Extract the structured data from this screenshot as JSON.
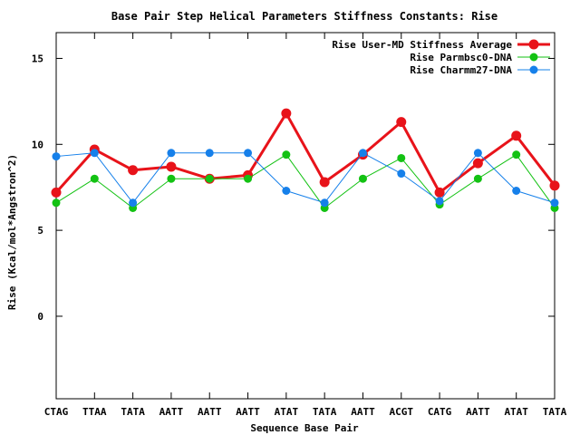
{
  "chart_data": {
    "type": "line",
    "title": "Base Pair Step Helical Parameters Stiffness Constants: Rise",
    "xlabel": "Sequence Base Pair",
    "ylabel": "Rise (Kcal/mol*Angstron^2)",
    "ylim": [
      -4.8,
      16.5
    ],
    "yticks": [
      0,
      5,
      10,
      15
    ],
    "grid": false,
    "legend_position": "top-right",
    "categories": [
      "CTAG",
      "TTAA",
      "TATA",
      "AATT",
      "AATT",
      "AATT",
      "ATAT",
      "TATA",
      "AATT",
      "ACGT",
      "CATG",
      "AATT",
      "ATAT",
      "TATA"
    ],
    "series": [
      {
        "name": "Rise User-MD Stiffness Average",
        "color": "#e8131a",
        "values": [
          7.2,
          9.7,
          8.5,
          8.7,
          8.0,
          8.2,
          11.8,
          7.8,
          9.4,
          11.3,
          7.2,
          8.9,
          10.5,
          7.6
        ]
      },
      {
        "name": "Rise Parmbsc0-DNA",
        "color": "#13c213",
        "values": [
          6.6,
          8.0,
          6.3,
          8.0,
          8.0,
          8.0,
          9.4,
          6.3,
          8.0,
          9.2,
          6.5,
          8.0,
          9.4,
          6.3
        ]
      },
      {
        "name": "Rise Charmm27-DNA",
        "color": "#1680ea",
        "values": [
          9.3,
          9.5,
          6.6,
          9.5,
          9.5,
          9.5,
          7.3,
          6.6,
          9.5,
          8.3,
          6.7,
          9.5,
          7.3,
          6.6
        ]
      }
    ]
  }
}
